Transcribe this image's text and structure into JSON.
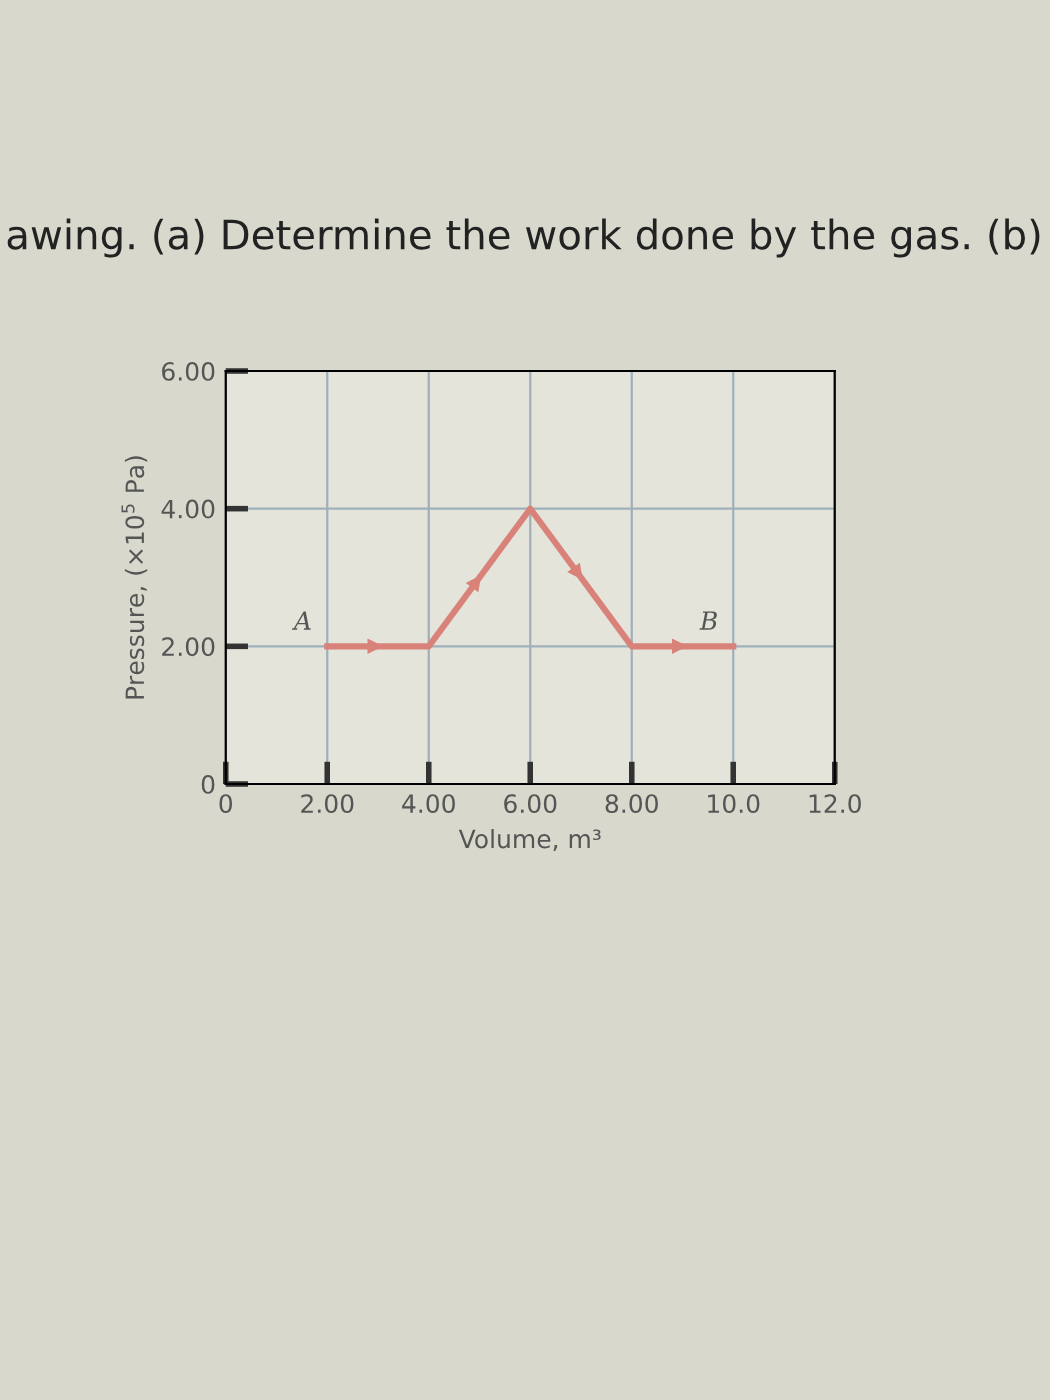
{
  "chart_data": {
    "type": "line",
    "title": "awing. (a) Determine the work done by the gas. (b)",
    "xlabel": "Volume, m³",
    "ylabel": "Pressure, (×10$^{5}$ Pa)",
    "x": [
      2,
      4,
      6,
      8,
      10
    ],
    "series": [
      {
        "color": "#d9827a",
        "values": [
          2,
          2,
          4,
          2,
          2
        ]
      }
    ],
    "xlim": [
      0,
      12
    ],
    "ylim": [
      0,
      6
    ],
    "xticks": [
      0,
      {
        "value": 2,
        "label": "2.00"
      },
      {
        "value": 4,
        "label": "4.00"
      },
      {
        "value": 6,
        "label": "6.00"
      },
      {
        "value": 8,
        "label": "8.00"
      },
      {
        "value": 10,
        "label": "10.0"
      },
      {
        "value": 12,
        "label": "12.0"
      }
    ],
    "yticks": [
      0,
      {
        "value": 2,
        "label": "2.00"
      },
      {
        "value": 4,
        "label": "4.00"
      },
      {
        "value": 6,
        "label": "6.00"
      }
    ],
    "grid": true,
    "line_style": "solid",
    "annotations": [
      {
        "text": "A",
        "x": 2,
        "y": 2
      },
      {
        "text": "B",
        "x": 10,
        "y": 2
      }
    ]
  }
}
